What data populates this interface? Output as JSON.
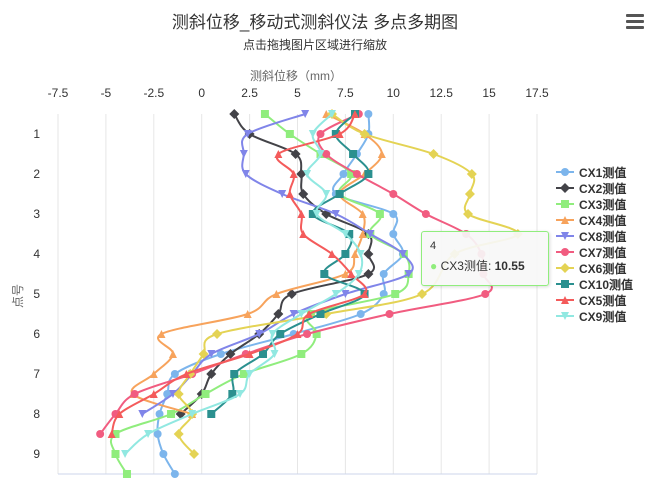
{
  "chart_data": {
    "type": "line",
    "title": "测斜位移_移动式测斜仪法 多点多期图",
    "subtitle": "点击拖拽图片区域进行缩放",
    "xlabel": "测斜位移（mm）",
    "ylabel": "点号",
    "x_ticks": [
      "-7.5",
      "-5",
      "-2.5",
      "0",
      "2.5",
      "5",
      "7.5",
      "10",
      "12.5",
      "15",
      "17.5"
    ],
    "y_ticks": [
      "1",
      "2",
      "3",
      "4",
      "5",
      "6",
      "7",
      "8",
      "9"
    ],
    "xlim": [
      -7.5,
      17.5
    ],
    "ylim": [
      0.5,
      9.5
    ],
    "y_reversed": true,
    "x_axis_position": "top",
    "grid": "vertical",
    "legend_position": "right",
    "series": [
      {
        "name": "CX1测值",
        "color": "#7cb5ec",
        "marker": "circle",
        "points": [
          [
            8.7,
            0.5
          ],
          [
            8.7,
            1
          ],
          [
            8.1,
            1.5
          ],
          [
            7.4,
            2
          ],
          [
            7,
            2.5
          ],
          [
            10,
            3
          ],
          [
            10,
            3.5
          ],
          [
            10.5,
            4
          ],
          [
            9.5,
            4.5
          ],
          [
            9.5,
            5
          ],
          [
            8.3,
            5.5
          ],
          [
            4.8,
            6
          ],
          [
            1,
            6.5
          ],
          [
            -1.4,
            7
          ],
          [
            -1.8,
            7.5
          ],
          [
            -2.2,
            8
          ],
          [
            -2.3,
            8.5
          ],
          [
            -2,
            9
          ],
          [
            -1.4,
            9.5
          ]
        ]
      },
      {
        "name": "CX2测值",
        "color": "#434348",
        "marker": "diamond",
        "points": [
          [
            1.7,
            0.5
          ],
          [
            2.5,
            1
          ],
          [
            4.9,
            1.5
          ],
          [
            5.2,
            2
          ],
          [
            5.3,
            2.5
          ],
          [
            6.5,
            3
          ],
          [
            8.7,
            3.5
          ],
          [
            8.7,
            4
          ],
          [
            8.7,
            4.5
          ],
          [
            4.7,
            5
          ],
          [
            4,
            5.5
          ],
          [
            3,
            6
          ],
          [
            1.5,
            6.5
          ],
          [
            0.5,
            7
          ],
          [
            0,
            7.5
          ],
          [
            -1.1,
            8
          ]
        ]
      },
      {
        "name": "CX3测值",
        "color": "#90ed7d",
        "marker": "square",
        "points": [
          [
            3.3,
            0.5
          ],
          [
            4.6,
            1
          ],
          [
            6.2,
            1.5
          ],
          [
            7.8,
            2
          ],
          [
            7.2,
            2.5
          ],
          [
            9.3,
            3
          ],
          [
            8.8,
            3.5
          ],
          [
            10.55,
            4
          ],
          [
            10.8,
            4.5
          ],
          [
            10.1,
            5
          ],
          [
            5.7,
            5.5
          ],
          [
            6,
            6
          ],
          [
            5.2,
            6.5
          ],
          [
            2.2,
            7
          ],
          [
            0.2,
            7.5
          ],
          [
            -1.6,
            8
          ],
          [
            -4.5,
            8.5
          ],
          [
            -4.5,
            9
          ],
          [
            -3.9,
            9.5
          ]
        ]
      },
      {
        "name": "CX4测值",
        "color": "#f7a35c",
        "marker": "triangle",
        "points": [
          [
            6.5,
            0.5
          ],
          [
            8.5,
            1
          ],
          [
            9.4,
            1.5
          ],
          [
            8.5,
            2
          ],
          [
            7.2,
            2.5
          ],
          [
            8.4,
            3
          ],
          [
            8.4,
            3.5
          ],
          [
            8,
            4
          ],
          [
            7.5,
            4.5
          ],
          [
            3.9,
            5
          ],
          [
            2.4,
            5.5
          ],
          [
            -2.1,
            6
          ],
          [
            -1.5,
            6.5
          ],
          [
            -2.5,
            7
          ],
          [
            -3.6,
            7.5
          ],
          [
            -0.5,
            8
          ]
        ]
      },
      {
        "name": "CX8测值",
        "color": "#8085e9",
        "marker": "triangle-down",
        "points": [
          [
            5.4,
            0.5
          ],
          [
            2.4,
            1
          ],
          [
            2.2,
            1.5
          ],
          [
            2.3,
            2
          ],
          [
            4.2,
            2.5
          ],
          [
            7,
            3
          ],
          [
            8.8,
            3.5
          ],
          [
            10.5,
            4
          ],
          [
            10.8,
            4.5
          ],
          [
            7.5,
            5
          ],
          [
            4.8,
            5.5
          ],
          [
            3,
            6
          ],
          [
            0.5,
            6.5
          ],
          [
            -0.5,
            7
          ],
          [
            -1.5,
            7.5
          ],
          [
            -3.1,
            8
          ]
        ]
      },
      {
        "name": "CX7测值",
        "color": "#f15c80",
        "marker": "circle",
        "points": [
          [
            8.2,
            0.5
          ],
          [
            6.2,
            1
          ],
          [
            6.5,
            1.5
          ],
          [
            8.1,
            2
          ],
          [
            10,
            2.5
          ],
          [
            11.7,
            3
          ],
          [
            13.8,
            3.5
          ],
          [
            14.6,
            4
          ],
          [
            14.7,
            4.5
          ],
          [
            14.8,
            5
          ],
          [
            9.8,
            5.5
          ],
          [
            5.5,
            6
          ],
          [
            2.3,
            6.5
          ],
          [
            -0.5,
            7
          ],
          [
            -3.5,
            7.5
          ],
          [
            -4.5,
            8
          ],
          [
            -5.3,
            8.5
          ]
        ]
      },
      {
        "name": "CX6测值",
        "color": "#e4d354",
        "marker": "diamond",
        "points": [
          [
            6.8,
            0.5
          ],
          [
            8.5,
            1
          ],
          [
            12.1,
            1.5
          ],
          [
            14.1,
            2
          ],
          [
            14,
            2.5
          ],
          [
            13.9,
            3
          ],
          [
            16.5,
            3.5
          ],
          [
            13.2,
            4
          ],
          [
            11.5,
            5
          ],
          [
            6.5,
            5.5
          ],
          [
            0.8,
            6
          ],
          [
            0.1,
            6.5
          ],
          [
            -0.6,
            7
          ],
          [
            -1.2,
            7.5
          ],
          [
            -0.5,
            8
          ],
          [
            -1.2,
            8.5
          ],
          [
            -0.4,
            9
          ]
        ]
      },
      {
        "name": "CX10测值",
        "color": "#2b908f",
        "marker": "square",
        "points": [
          [
            8,
            0.5
          ],
          [
            7,
            1
          ],
          [
            7.9,
            1.5
          ],
          [
            8.7,
            2
          ],
          [
            7.2,
            2.5
          ],
          [
            5.8,
            3
          ],
          [
            7.7,
            3.5
          ],
          [
            7.5,
            4
          ],
          [
            6.4,
            4.5
          ],
          [
            8.5,
            5
          ],
          [
            6.2,
            5.5
          ],
          [
            4.1,
            6
          ],
          [
            3.2,
            6.5
          ],
          [
            1.7,
            7
          ],
          [
            1.6,
            7.5
          ],
          [
            0.5,
            8
          ]
        ]
      },
      {
        "name": "CX5测值",
        "color": "#f45b5b",
        "marker": "triangle",
        "points": [
          [
            8,
            0.5
          ],
          [
            7.2,
            1
          ],
          [
            4,
            1.5
          ],
          [
            4.8,
            2
          ],
          [
            4.6,
            2.5
          ],
          [
            5.2,
            3
          ],
          [
            5.3,
            3.5
          ],
          [
            6.8,
            4
          ],
          [
            7.8,
            4.5
          ],
          [
            8.5,
            5
          ],
          [
            5.6,
            5.5
          ],
          [
            5,
            6
          ],
          [
            2.5,
            6.5
          ],
          [
            -0.8,
            7
          ],
          [
            -2.5,
            7.5
          ],
          [
            -4.3,
            8
          ],
          [
            -4.7,
            8.5
          ]
        ]
      },
      {
        "name": "CX9测值",
        "color": "#91e8e1",
        "marker": "triangle-down",
        "points": [
          [
            6.8,
            0.5
          ],
          [
            5.8,
            1
          ],
          [
            6.2,
            1.5
          ],
          [
            5.5,
            2
          ],
          [
            6.5,
            2.5
          ],
          [
            6,
            3
          ],
          [
            7.5,
            3.5
          ],
          [
            8.3,
            4
          ],
          [
            8.2,
            4.5
          ],
          [
            7,
            5
          ],
          [
            5.2,
            5.5
          ],
          [
            3.7,
            6
          ],
          [
            3.8,
            6.5
          ],
          [
            2.5,
            7
          ],
          [
            2,
            7.5
          ],
          [
            -0.5,
            8
          ],
          [
            -2.8,
            8.5
          ],
          [
            -4,
            9
          ]
        ]
      }
    ]
  },
  "tooltip": {
    "header": "4",
    "series_label": "CX3测值",
    "value": "10.55"
  }
}
